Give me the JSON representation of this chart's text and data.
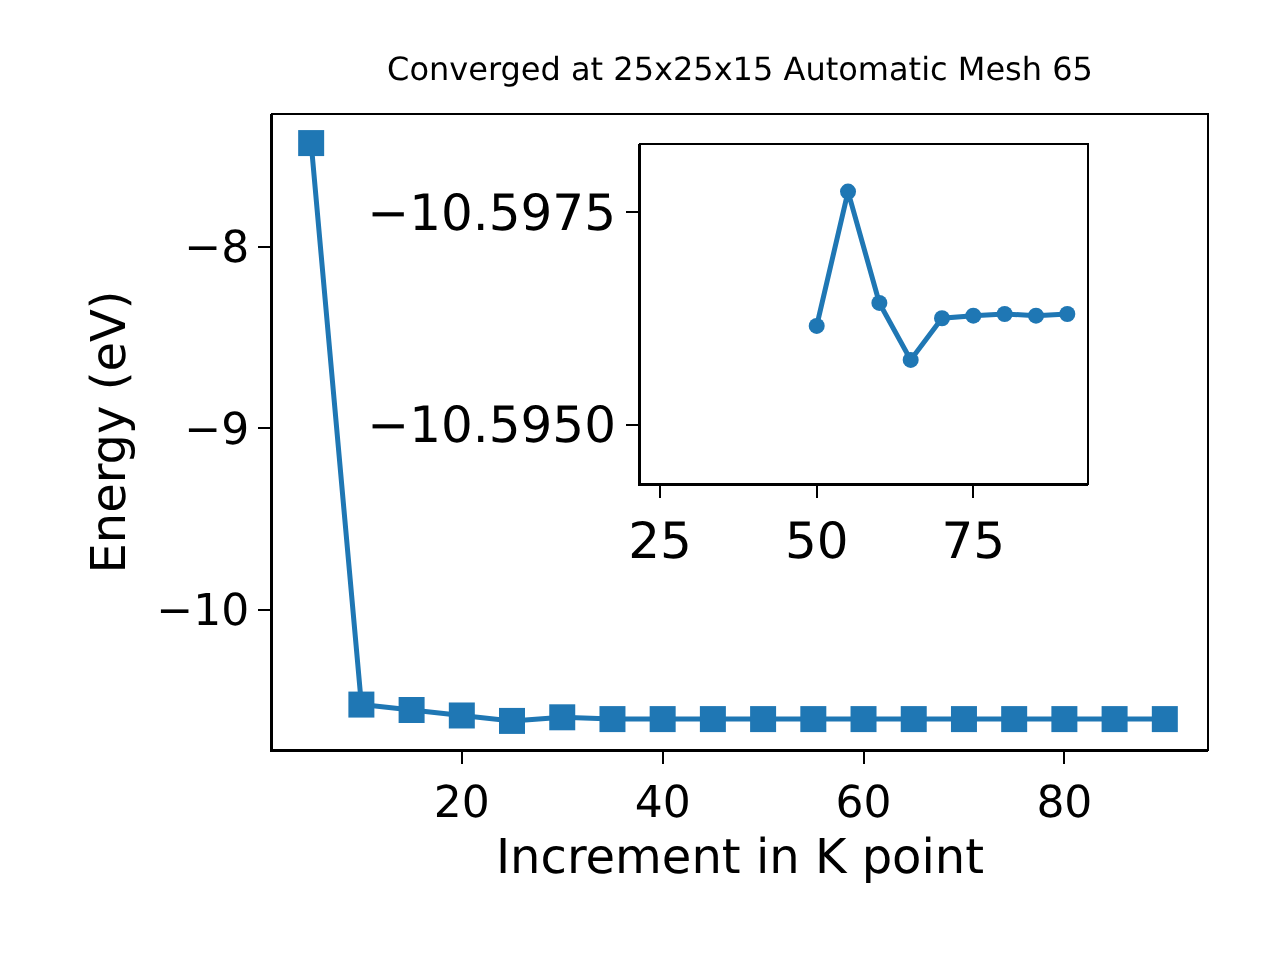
{
  "chart_data": [
    {
      "type": "line",
      "title": "Converged at 25x25x15 Automatic Mesh 65",
      "xlabel": "Increment in K point",
      "ylabel": "Energy (eV)",
      "x": [
        5,
        10,
        15,
        20,
        25,
        30,
        35,
        40,
        45,
        50,
        55,
        60,
        65,
        70,
        75,
        80,
        85,
        90
      ],
      "series": [
        {
          "color": "#1f77b4",
          "values": [
            -7.43,
            -10.52,
            -10.55,
            -10.58,
            -10.61,
            -10.59,
            -10.6,
            -10.6,
            -10.6,
            -10.6,
            -10.6,
            -10.6,
            -10.6,
            -10.6,
            -10.6,
            -10.6,
            -10.6,
            -10.6
          ]
        }
      ],
      "xlim": [
        1.1,
        94.3
      ],
      "ylim": [
        -10.77,
        -7.27
      ],
      "xticks": [
        20,
        40,
        60,
        80
      ],
      "yticks": [
        -8,
        -9,
        -10
      ],
      "marker": "square",
      "line_style": "solid",
      "grid": false,
      "legend": false
    },
    {
      "type": "line",
      "x": [
        50,
        55,
        60,
        65,
        70,
        75,
        80,
        85,
        90
      ],
      "series": [
        {
          "color": "#1f77b4",
          "values": [
            -10.59616,
            -10.59774,
            -10.59643,
            -10.59576,
            -10.59625,
            -10.59628,
            -10.5963,
            -10.59628,
            -10.5963
          ]
        }
      ],
      "xlim": [
        21.8,
        93.3
      ],
      "ylim": [
        -10.5943,
        -10.5983
      ],
      "xticks": [
        25,
        50,
        75
      ],
      "yticks": [
        -10.5975,
        {
          "value": -10.595,
          "label": "−10.5950"
        }
      ],
      "marker": "circle",
      "line_style": "solid",
      "grid": false,
      "legend": false
    }
  ]
}
